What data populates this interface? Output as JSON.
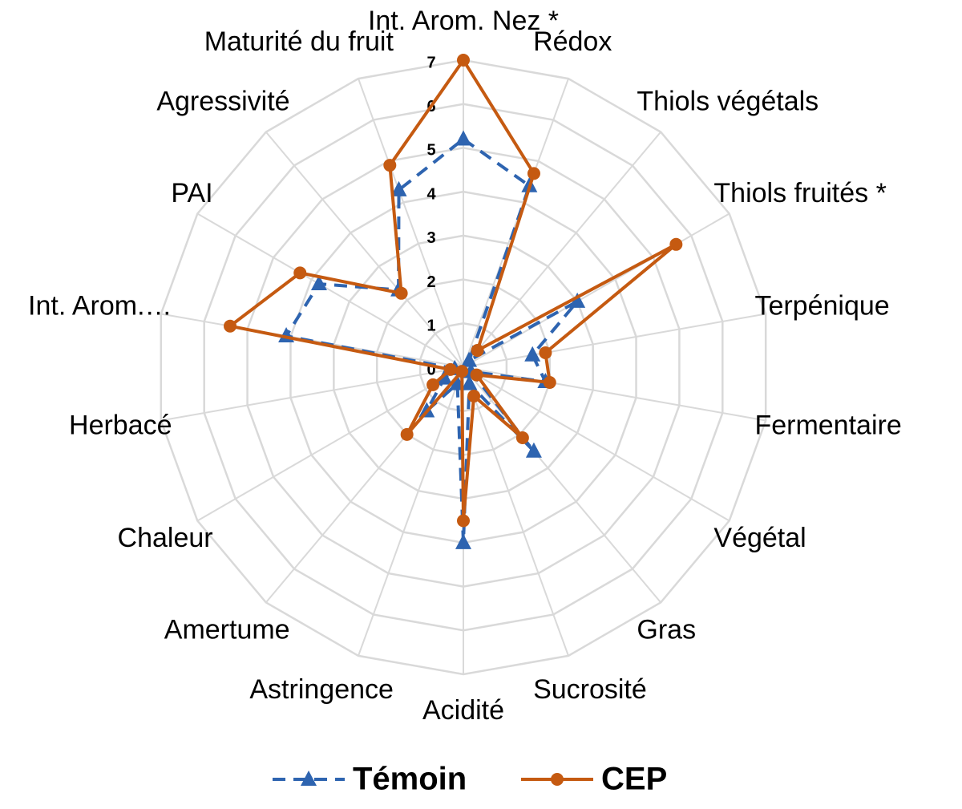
{
  "chart_data": {
    "type": "radar",
    "categories": [
      "Int. Arom. Nez *",
      "Rédox",
      "Thiols végétals",
      "Thiols fruités *",
      "Terpénique",
      "Fermentaire",
      "Végétal",
      "Gras",
      "Sucrosité",
      "Acidité",
      "Astringence",
      "Amertume",
      "Chaleur",
      "Herbacé",
      "Int. Arom.…",
      "PAI",
      "Agressivité",
      "Maturité du fruit"
    ],
    "series": [
      {
        "name": "Témoin",
        "color": "#2e64b0",
        "marker": "triangle",
        "dash": true,
        "values": [
          5.2,
          4.4,
          0.2,
          3.0,
          1.6,
          1.9,
          0.2,
          2.5,
          0.4,
          4.0,
          0.4,
          1.3,
          0.5,
          0.2,
          4.1,
          3.8,
          2.3,
          4.3
        ]
      },
      {
        "name": "CEP",
        "color": "#c55a11",
        "marker": "circle",
        "dash": false,
        "values": [
          7.0,
          4.7,
          0.5,
          5.6,
          1.9,
          2.0,
          0.35,
          2.1,
          0.7,
          3.5,
          0.1,
          2.0,
          0.8,
          0.3,
          5.4,
          4.3,
          2.2,
          4.9
        ]
      }
    ],
    "ylim": [
      0,
      7
    ],
    "yticks": [
      0,
      1,
      2,
      3,
      4,
      5,
      6,
      7
    ],
    "grid": true,
    "legend": "bottom"
  }
}
